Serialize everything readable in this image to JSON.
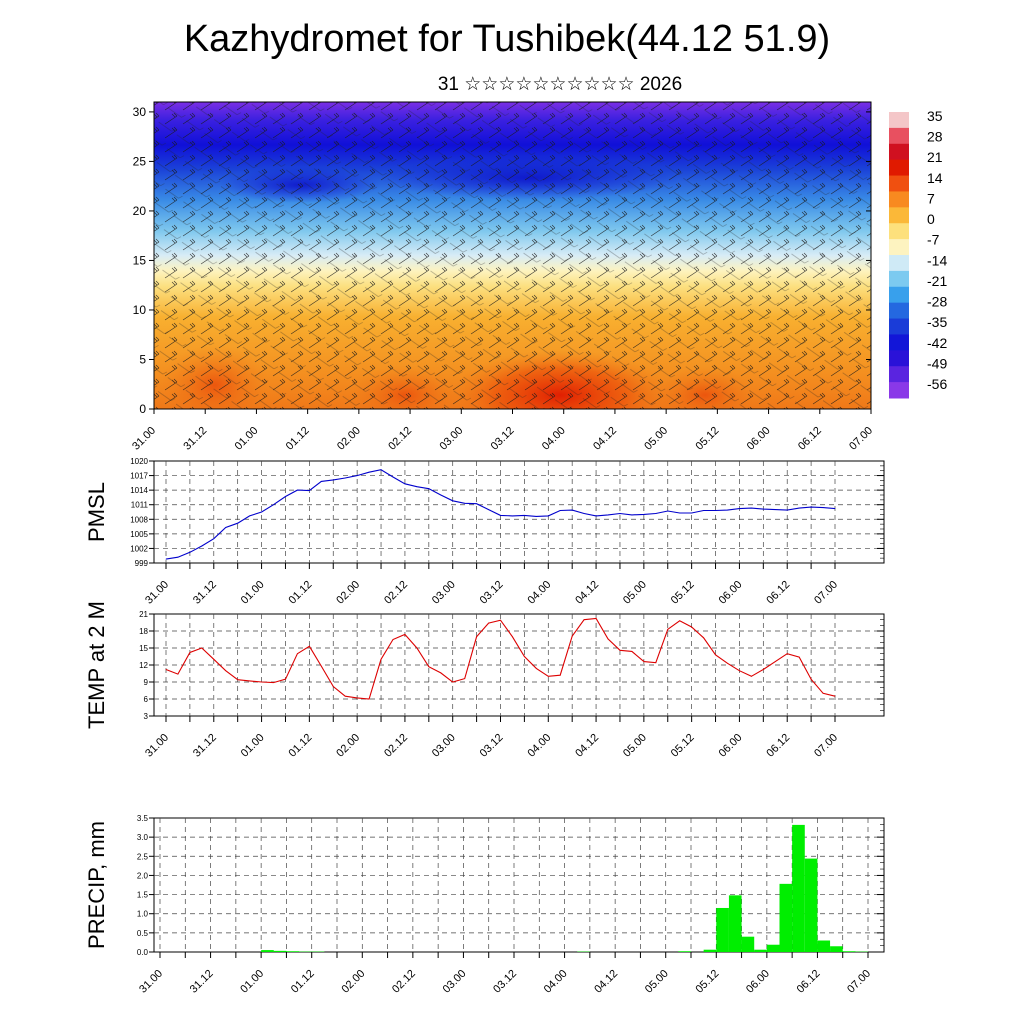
{
  "title": "Kazhydromet for Tushibek(44.12 51.9)",
  "subtitle": "31 ☆☆☆☆☆☆☆☆☆☆ 2026",
  "colors": {
    "pmsl_line": "#0000cc",
    "temp_line": "#dd0000",
    "precip_bar": "#00ee00"
  },
  "chart_data": [
    {
      "type": "heatmap",
      "name": "cross-section",
      "title": "",
      "x_tick_labels": [
        "31.00",
        "31.12",
        "01.00",
        "01.12",
        "02.00",
        "02.12",
        "03.00",
        "03.12",
        "04.00",
        "04.12",
        "05.00",
        "05.12",
        "06.00",
        "06.12",
        "07.00"
      ],
      "y_ticks": [
        0,
        5,
        10,
        15,
        20,
        25,
        30
      ],
      "ylim": [
        0,
        31
      ],
      "colorbar_labels": [
        "35",
        "28",
        "21",
        "14",
        "7",
        "0",
        "-7",
        "-14",
        "-21",
        "-28",
        "-35",
        "-42",
        "-49",
        "-56"
      ],
      "colorbar_range": [
        -60,
        38
      ],
      "overlay": "wind barbs"
    },
    {
      "type": "line",
      "name": "pmsl",
      "ylabel": "PMSL",
      "ylim": [
        999,
        1020
      ],
      "y_ticks": [
        999,
        1002,
        1005,
        1008,
        1011,
        1014,
        1017,
        1020
      ],
      "x_tick_labels": [
        "31.00",
        "31.12",
        "01.00",
        "01.12",
        "02.00",
        "02.12",
        "03.00",
        "03.12",
        "04.00",
        "04.12",
        "05.00",
        "05.12",
        "06.00",
        "06.12",
        "07.00"
      ],
      "grid": true,
      "x": [
        0,
        3,
        6,
        9,
        12,
        15,
        18,
        21,
        24,
        27,
        30,
        33,
        36,
        39,
        42,
        45,
        48,
        51,
        54,
        57,
        60,
        63,
        66,
        69,
        72,
        75,
        78,
        81,
        84,
        87,
        90,
        93,
        96,
        99,
        102,
        105,
        108,
        111,
        114,
        117,
        120,
        123,
        126,
        129,
        132,
        135,
        138,
        141,
        144,
        147,
        150,
        153,
        156,
        159,
        162,
        165,
        168
      ],
      "values": [
        999.8,
        1000.2,
        1001.2,
        1002.5,
        1004.0,
        1006.3,
        1007.2,
        1008.7,
        1009.5,
        1011.0,
        1012.7,
        1014.0,
        1013.9,
        1015.8,
        1016.1,
        1016.5,
        1017.0,
        1017.7,
        1018.2,
        1016.7,
        1015.3,
        1014.7,
        1014.3,
        1013.0,
        1011.8,
        1011.3,
        1011.2,
        1010.0,
        1008.8,
        1008.7,
        1008.8,
        1008.6,
        1008.7,
        1009.8,
        1009.9,
        1009.2,
        1008.7,
        1008.9,
        1009.2,
        1008.9,
        1009.0,
        1009.2,
        1009.7,
        1009.3,
        1009.3,
        1009.8,
        1009.8,
        1009.9,
        1010.2,
        1010.3,
        1010.1,
        1010.0,
        1009.9,
        1010.3,
        1010.5,
        1010.4,
        1010.2
      ],
      "series": [
        {
          "values_ref": "values"
        }
      ]
    },
    {
      "type": "line",
      "name": "temp",
      "ylabel": "TEMP at 2 M",
      "ylim": [
        3,
        21
      ],
      "y_ticks": [
        3,
        6,
        9,
        12,
        15,
        18,
        21
      ],
      "x_tick_labels": [
        "31.00",
        "31.12",
        "01.00",
        "01.12",
        "02.00",
        "02.12",
        "03.00",
        "03.12",
        "04.00",
        "04.12",
        "05.00",
        "05.12",
        "06.00",
        "06.12",
        "07.00"
      ],
      "grid": true,
      "x": [
        0,
        3,
        6,
        9,
        12,
        15,
        18,
        21,
        24,
        27,
        30,
        33,
        36,
        39,
        42,
        45,
        48,
        51,
        54,
        57,
        60,
        63,
        66,
        69,
        72,
        75,
        78,
        81,
        84,
        87,
        90,
        93,
        96,
        99,
        102,
        105,
        108,
        111,
        114,
        117,
        120,
        123,
        126,
        129,
        132,
        135,
        138,
        141,
        144,
        147,
        150,
        153,
        156,
        159,
        162,
        165,
        168
      ],
      "values": [
        11.2,
        10.4,
        14.2,
        15.0,
        13.0,
        11.0,
        9.4,
        9.2,
        9.0,
        8.9,
        9.5,
        14.0,
        15.3,
        11.8,
        8.2,
        6.5,
        6.2,
        6.0,
        13.0,
        16.5,
        17.4,
        15.0,
        11.7,
        10.6,
        9.0,
        9.6,
        17.0,
        19.4,
        19.9,
        17.0,
        13.5,
        11.4,
        10.0,
        10.2,
        17.1,
        20.0,
        20.2,
        16.6,
        14.6,
        14.4,
        12.6,
        12.4,
        18.3,
        19.8,
        18.7,
        16.8,
        13.8,
        12.3,
        11.0,
        10.0,
        11.2,
        12.6,
        14.0,
        13.4,
        9.5,
        7.0,
        6.5
      ]
    },
    {
      "type": "bar",
      "name": "precip",
      "ylabel": "PRECIP, mm",
      "ylim": [
        0,
        3.5
      ],
      "y_ticks": [
        0.0,
        0.5,
        1.0,
        1.5,
        2.0,
        2.5,
        3.0,
        3.5
      ],
      "y_tick_labels": [
        "0.0",
        "0.5",
        "1.0",
        "1.5",
        "2.0",
        "2.5",
        "3.0",
        "3.5"
      ],
      "x_tick_labels": [
        "31.00",
        "31.12",
        "01.00",
        "01.12",
        "02.00",
        "02.12",
        "03.00",
        "03.12",
        "04.00",
        "04.12",
        "05.00",
        "05.12",
        "06.00",
        "06.12",
        "07.00"
      ],
      "grid": true,
      "bar_start_hours": [
        24,
        27,
        30,
        33,
        36,
        99,
        123,
        129,
        132,
        135,
        138,
        141,
        144,
        147,
        150,
        153,
        156,
        159,
        162,
        165
      ],
      "values": [
        0.05,
        0.03,
        0.02,
        0.01,
        0.01,
        0.01,
        0.02,
        0.06,
        1.15,
        1.48,
        0.4,
        0.06,
        0.19,
        1.78,
        3.32,
        2.44,
        0.3,
        0.15,
        0.02,
        0.01
      ]
    }
  ]
}
